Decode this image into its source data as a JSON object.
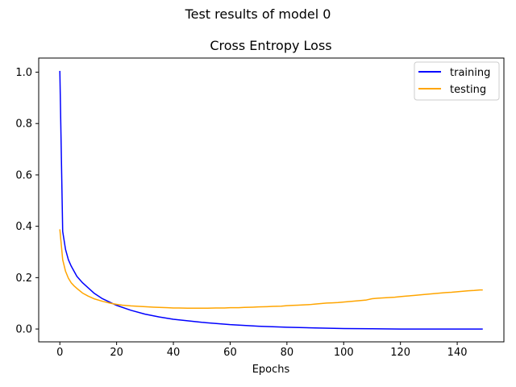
{
  "figure": {
    "suptitle": "Test results of model 0"
  },
  "chart_data": {
    "type": "line",
    "title": "Cross Entropy Loss",
    "xlabel": "Epochs",
    "ylabel": "",
    "xlim": [
      -7.45,
      156.45
    ],
    "ylim": [
      -0.05,
      1.055
    ],
    "xticks": [
      0,
      20,
      40,
      60,
      80,
      100,
      120,
      140
    ],
    "yticks": [
      0.0,
      0.2,
      0.4,
      0.6,
      0.8,
      1.0
    ],
    "xtick_labels": [
      "0",
      "20",
      "40",
      "60",
      "80",
      "100",
      "120",
      "140"
    ],
    "ytick_labels": [
      "0.0",
      "0.2",
      "0.4",
      "0.6",
      "0.8",
      "1.0"
    ],
    "grid": false,
    "legend_position": "top-right",
    "series": [
      {
        "name": "training",
        "color": "#0000ff",
        "x": [
          0,
          1,
          2,
          3,
          4,
          5,
          6,
          8,
          10,
          12,
          15,
          20,
          25,
          30,
          35,
          40,
          50,
          60,
          70,
          80,
          90,
          100,
          110,
          120,
          130,
          140,
          149
        ],
        "values": [
          1.005,
          0.38,
          0.31,
          0.27,
          0.245,
          0.225,
          0.205,
          0.18,
          0.16,
          0.14,
          0.118,
          0.092,
          0.073,
          0.058,
          0.047,
          0.038,
          0.026,
          0.017,
          0.011,
          0.007,
          0.004,
          0.002,
          0.001,
          0.0,
          0.0,
          0.0,
          0.0
        ]
      },
      {
        "name": "testing",
        "color": "#ffa500",
        "x": [
          0,
          1,
          2,
          3,
          4,
          5,
          6,
          8,
          10,
          12,
          15,
          18,
          20,
          22,
          25,
          28,
          30,
          33,
          35,
          38,
          40,
          42,
          45,
          48,
          50,
          52,
          55,
          58,
          60,
          63,
          65,
          68,
          70,
          73,
          75,
          78,
          80,
          82,
          84,
          86,
          88,
          90,
          92,
          94,
          96,
          98,
          100,
          102,
          104,
          106,
          108,
          110,
          112,
          115,
          118,
          120,
          122,
          125,
          128,
          130,
          132,
          134,
          136,
          138,
          140,
          142,
          144,
          146,
          148,
          149
        ],
        "values": [
          0.388,
          0.27,
          0.225,
          0.198,
          0.18,
          0.168,
          0.158,
          0.14,
          0.128,
          0.118,
          0.108,
          0.1,
          0.096,
          0.093,
          0.09,
          0.088,
          0.087,
          0.085,
          0.084,
          0.083,
          0.082,
          0.082,
          0.081,
          0.081,
          0.081,
          0.081,
          0.082,
          0.082,
          0.083,
          0.083,
          0.084,
          0.085,
          0.086,
          0.087,
          0.088,
          0.089,
          0.091,
          0.092,
          0.093,
          0.094,
          0.095,
          0.097,
          0.099,
          0.101,
          0.102,
          0.103,
          0.105,
          0.107,
          0.109,
          0.111,
          0.113,
          0.118,
          0.12,
          0.122,
          0.124,
          0.126,
          0.128,
          0.131,
          0.134,
          0.136,
          0.138,
          0.14,
          0.142,
          0.143,
          0.145,
          0.147,
          0.149,
          0.15,
          0.152,
          0.152
        ]
      }
    ]
  }
}
